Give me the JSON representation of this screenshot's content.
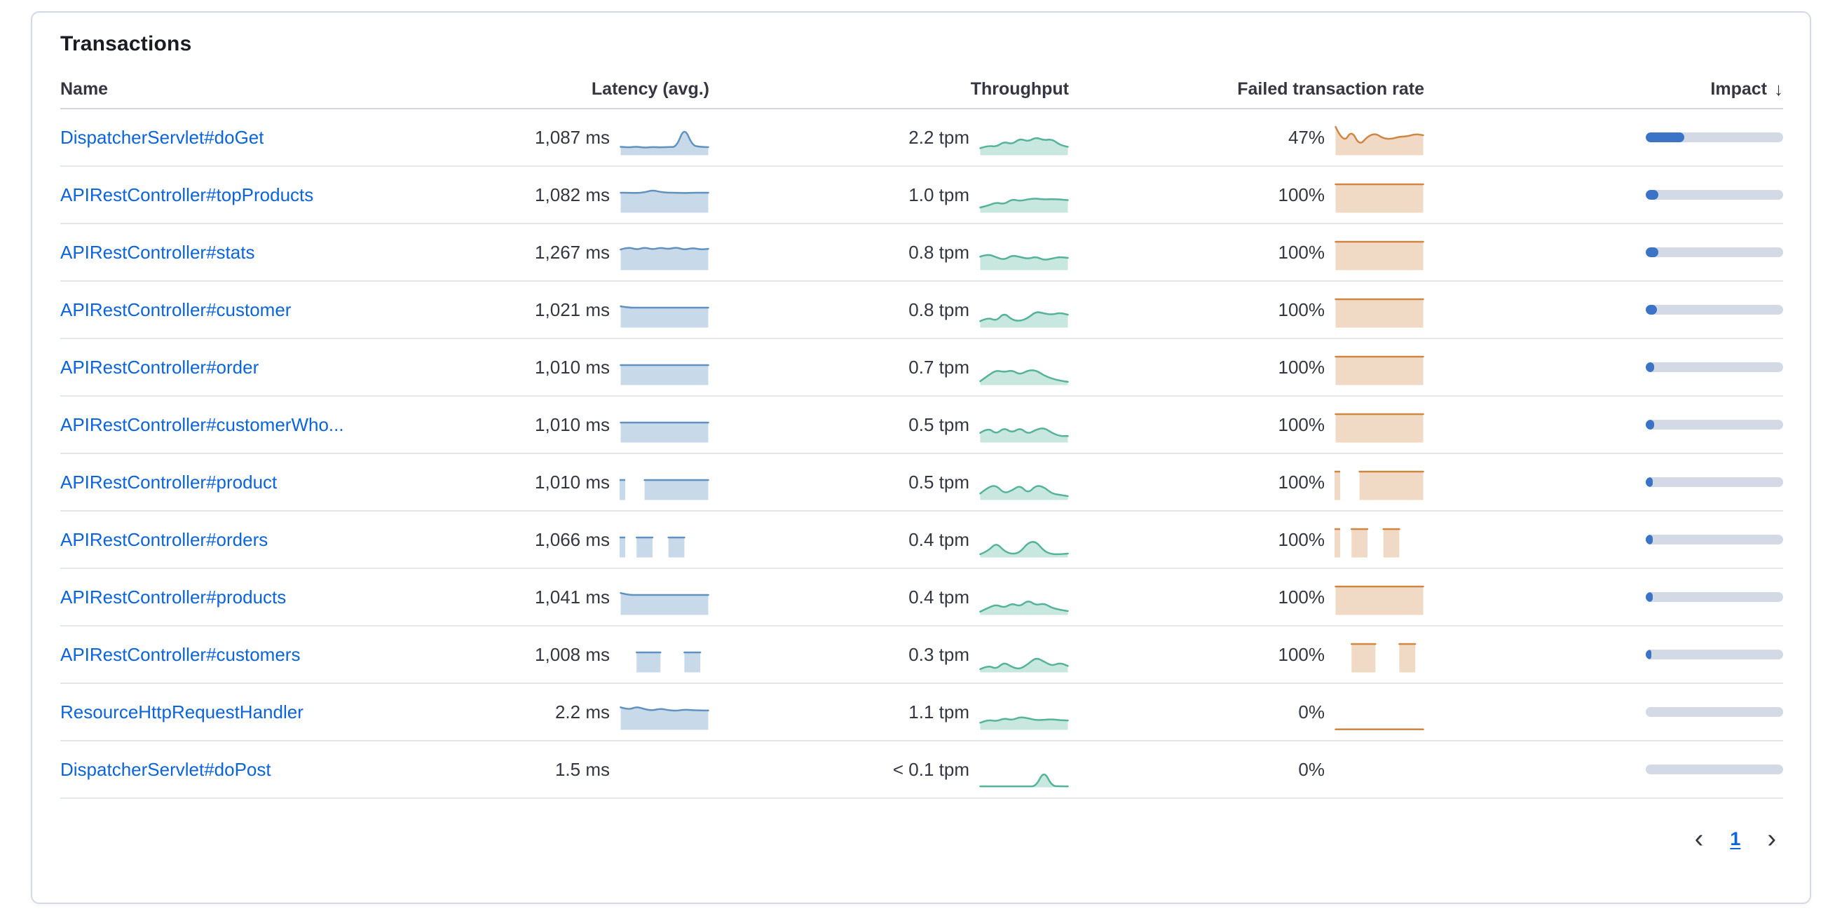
{
  "panel": {
    "title": "Transactions"
  },
  "table": {
    "columns": [
      {
        "key": "name",
        "label": "Name"
      },
      {
        "key": "latency",
        "label": "Latency (avg.)"
      },
      {
        "key": "throughput",
        "label": "Throughput"
      },
      {
        "key": "failed_rate",
        "label": "Failed transaction rate"
      },
      {
        "key": "impact",
        "label": "Impact"
      }
    ],
    "sort_icon": "↓",
    "sorted_column": "impact",
    "sort_direction": "desc"
  },
  "rows": [
    {
      "name": "DispatcherServlet#doGet",
      "latency": "1,087 ms",
      "throughput": "2.2 tpm",
      "failed_rate": "47%",
      "impact_pct": 28,
      "latency_spark": [
        2.6,
        2.4,
        2.7,
        2.3,
        2.6,
        2.4,
        2.6,
        2.5,
        8.8,
        3.0,
        2.6,
        2.5
      ],
      "throughput_spark": [
        2.2,
        3.0,
        2.6,
        4.2,
        3.4,
        5.2,
        4.2,
        5.6,
        4.6,
        5.0,
        3.2,
        2.6
      ],
      "failed_spark": [
        8.8,
        3.6,
        7.8,
        3.0,
        5.8,
        6.8,
        5.2,
        5.0,
        5.8,
        5.8,
        6.6,
        6.2
      ]
    },
    {
      "name": "APIRestController#topProducts",
      "latency": "1,082 ms",
      "throughput": "1.0 tpm",
      "failed_rate": "100%",
      "impact_pct": 9,
      "latency_spark": [
        6.2,
        6.2,
        6.1,
        6.3,
        7.0,
        6.4,
        6.2,
        6.2,
        6.1,
        6.2,
        6.2,
        6.2
      ],
      "throughput_spark": [
        1.6,
        2.2,
        3.2,
        2.6,
        4.2,
        3.6,
        4.2,
        4.4,
        4.1,
        4.2,
        4.1,
        3.9
      ],
      "failed_spark": [
        8.8,
        8.8,
        8.8,
        8.8,
        8.8,
        8.8,
        8.8,
        8.8,
        8.8,
        8.8,
        8.8,
        8.8
      ]
    },
    {
      "name": "APIRestController#stats",
      "latency": "1,267 ms",
      "throughput": "0.8 tpm",
      "failed_rate": "100%",
      "impact_pct": 9,
      "latency_spark": [
        6.4,
        7.2,
        6.3,
        7.1,
        6.4,
        7.0,
        6.5,
        7.1,
        6.3,
        6.9,
        6.4,
        6.6
      ],
      "throughput_spark": [
        4.2,
        5.0,
        4.0,
        3.2,
        4.6,
        4.1,
        3.5,
        4.2,
        3.1,
        3.6,
        4.1,
        3.8
      ],
      "failed_spark": [
        8.8,
        8.8,
        8.8,
        8.8,
        8.8,
        8.8,
        8.8,
        8.8,
        8.8,
        8.8,
        8.8,
        8.8
      ]
    },
    {
      "name": "APIRestController#customer",
      "latency": "1,021 ms",
      "throughput": "0.8 tpm",
      "failed_rate": "100%",
      "impact_pct": 8,
      "latency_spark": [
        6.6,
        6.2,
        6.2,
        6.2,
        6.2,
        6.2,
        6.2,
        6.2,
        6.2,
        6.2,
        6.2,
        6.2
      ],
      "throughput_spark": [
        2.0,
        3.2,
        2.0,
        4.6,
        2.4,
        2.0,
        3.0,
        5.0,
        4.4,
        4.0,
        4.6,
        4.0
      ],
      "failed_spark": [
        8.8,
        8.8,
        8.8,
        8.8,
        8.8,
        8.8,
        8.8,
        8.8,
        8.8,
        8.8,
        8.8,
        8.8
      ]
    },
    {
      "name": "APIRestController#order",
      "latency": "1,010 ms",
      "throughput": "0.7 tpm",
      "failed_rate": "100%",
      "impact_pct": 6,
      "latency_spark": [
        6.2,
        6.2,
        6.2,
        6.2,
        6.2,
        6.2,
        6.2,
        6.2,
        6.2,
        6.2,
        6.2,
        6.2
      ],
      "throughput_spark": [
        1.2,
        3.0,
        4.6,
        4.0,
        4.6,
        3.2,
        4.6,
        4.6,
        3.0,
        2.0,
        1.4,
        1.0
      ],
      "failed_spark": [
        8.8,
        8.8,
        8.8,
        8.8,
        8.8,
        8.8,
        8.8,
        8.8,
        8.8,
        8.8,
        8.8,
        8.8
      ]
    },
    {
      "name": "APIRestController#customerWho...",
      "latency": "1,010 ms",
      "throughput": "0.5 tpm",
      "failed_rate": "100%",
      "impact_pct": 6,
      "latency_spark": [
        6.2,
        6.2,
        6.2,
        6.2,
        6.2,
        6.2,
        6.2,
        6.2,
        6.2,
        6.2,
        6.2,
        6.2
      ],
      "throughput_spark": [
        3.0,
        4.6,
        2.6,
        4.6,
        3.0,
        4.6,
        2.6,
        4.0,
        4.6,
        3.0,
        2.0,
        2.0
      ],
      "failed_spark": [
        8.8,
        8.8,
        8.8,
        8.8,
        8.8,
        8.8,
        8.8,
        8.8,
        8.8,
        8.8,
        8.8,
        8.8
      ]
    },
    {
      "name": "APIRestController#product",
      "latency": "1,010 ms",
      "throughput": "0.5 tpm",
      "failed_rate": "100%",
      "impact_pct": 5,
      "latency_spark": [
        6.2,
        null,
        null,
        6.2,
        6.2,
        6.2,
        6.2,
        6.2,
        6.2,
        6.2,
        6.2,
        6.2
      ],
      "throughput_spark": [
        2.0,
        4.0,
        4.6,
        2.0,
        3.0,
        4.6,
        2.0,
        4.6,
        4.0,
        2.0,
        1.6,
        1.2
      ],
      "failed_spark": [
        8.8,
        null,
        null,
        8.8,
        8.8,
        8.8,
        8.8,
        8.8,
        8.8,
        8.8,
        8.8,
        8.8
      ]
    },
    {
      "name": "APIRestController#orders",
      "latency": "1,066 ms",
      "throughput": "0.4 tpm",
      "failed_rate": "100%",
      "impact_pct": 5,
      "latency_spark": [
        6.2,
        null,
        6.2,
        6.2,
        6.2,
        null,
        6.2,
        6.2,
        6.2,
        null,
        null,
        null
      ],
      "throughput_spark": [
        1.0,
        2.0,
        4.6,
        2.0,
        1.0,
        1.6,
        4.6,
        5.0,
        2.0,
        1.0,
        1.0,
        1.2
      ],
      "failed_spark": [
        8.8,
        null,
        8.8,
        8.8,
        8.8,
        null,
        8.8,
        8.8,
        8.8,
        null,
        null,
        null
      ]
    },
    {
      "name": "APIRestController#products",
      "latency": "1,041 ms",
      "throughput": "0.4 tpm",
      "failed_rate": "100%",
      "impact_pct": 5,
      "latency_spark": [
        6.8,
        6.2,
        6.2,
        6.2,
        6.2,
        6.2,
        6.2,
        6.2,
        6.2,
        6.2,
        6.2,
        6.2
      ],
      "throughput_spark": [
        1.0,
        2.2,
        3.2,
        2.2,
        3.6,
        2.6,
        4.6,
        3.0,
        3.6,
        2.2,
        1.6,
        1.2
      ],
      "failed_spark": [
        8.8,
        8.8,
        8.8,
        8.8,
        8.8,
        8.8,
        8.8,
        8.8,
        8.8,
        8.8,
        8.8,
        8.8
      ]
    },
    {
      "name": "APIRestController#customers",
      "latency": "1,008 ms",
      "throughput": "0.3 tpm",
      "failed_rate": "100%",
      "impact_pct": 4,
      "latency_spark": [
        null,
        null,
        6.2,
        6.2,
        6.2,
        6.2,
        null,
        null,
        6.2,
        6.2,
        6.2,
        null
      ],
      "throughput_spark": [
        1.0,
        2.2,
        1.0,
        3.2,
        1.6,
        1.0,
        2.6,
        4.6,
        3.4,
        2.0,
        3.0,
        2.0
      ],
      "failed_spark": [
        null,
        null,
        8.8,
        8.8,
        8.8,
        8.8,
        null,
        null,
        8.8,
        8.8,
        8.8,
        null
      ]
    },
    {
      "name": "ResourceHttpRequestHandler",
      "latency": "2.2 ms",
      "throughput": "1.1 tpm",
      "failed_rate": "0%",
      "impact_pct": 0,
      "latency_spark": [
        7.0,
        6.2,
        7.2,
        6.4,
        6.0,
        6.6,
        6.1,
        5.9,
        6.3,
        6.1,
        6.0,
        6.0
      ],
      "throughput_spark": [
        2.2,
        3.2,
        2.6,
        3.6,
        3.0,
        4.0,
        3.6,
        3.0,
        3.1,
        3.3,
        3.0,
        2.9
      ],
      "failed_spark": [
        0.15,
        0.15,
        0.15,
        0.15,
        0.15,
        0.15,
        0.15,
        0.15,
        0.15,
        0.15,
        0.15,
        0.15
      ]
    },
    {
      "name": "DispatcherServlet#doPost",
      "latency": "1.5 ms",
      "throughput": "< 0.1 tpm",
      "failed_rate": "0%",
      "impact_pct": 0,
      "latency_spark": null,
      "throughput_spark": [
        0.3,
        0.3,
        0.3,
        0.3,
        0.3,
        0.3,
        0.3,
        0.3,
        5.2,
        0.4,
        0.3,
        0.3
      ],
      "failed_spark": null
    }
  ],
  "pagination": {
    "prev_icon": "‹",
    "current_page": "1",
    "next_icon": "›"
  },
  "colors": {
    "link": "#0b64dd",
    "text": "#343741",
    "title": "#1a1c21",
    "border": "#d3dae6",
    "latency_stroke": "#6092c0",
    "latency_fill": "rgba(96,146,192,0.35)",
    "throughput_stroke": "#54b399",
    "throughput_fill": "rgba(84,179,153,0.32)",
    "failed_stroke": "#ce8643",
    "failed_fill": "rgba(206,134,67,0.30)",
    "impact_fill": "#3b73c7",
    "impact_track": "#d3dae6"
  }
}
